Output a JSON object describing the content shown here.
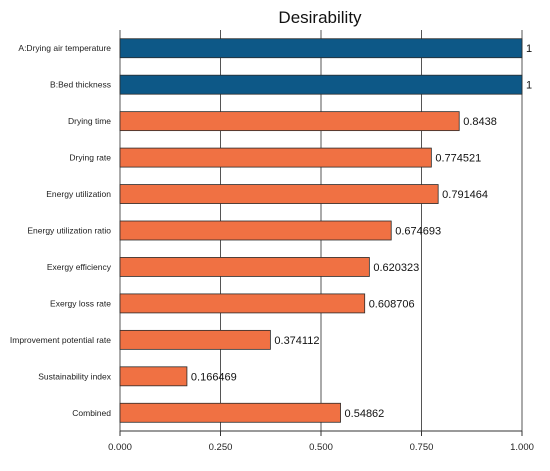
{
  "chart_data": {
    "type": "bar",
    "orientation": "horizontal",
    "title": "Desirability",
    "xlabel": "",
    "ylabel": "",
    "xlim": [
      0,
      1
    ],
    "ticks": [
      "0.000",
      "0.250",
      "0.500",
      "0.750",
      "1.000"
    ],
    "tick_values": [
      0,
      0.25,
      0.5,
      0.75,
      1
    ],
    "grid": "vertical",
    "categories": [
      "A:Drying air temperature",
      "B:Bed thickness",
      "Drying time",
      "Drying rate",
      "Energy utilization",
      "Energy utilization ratio",
      "Exergy efficiency",
      "Exergy loss rate",
      "Improvement potential rate",
      "Sustainability index",
      "Combined"
    ],
    "values": [
      1,
      1,
      0.8438,
      0.774521,
      0.791464,
      0.674693,
      0.620323,
      0.608706,
      0.374112,
      0.166469,
      0.54862
    ],
    "value_labels": [
      "1",
      "1",
      "0.8438",
      "0.774521",
      "0.791464",
      "0.674693",
      "0.620323",
      "0.608706",
      "0.374112",
      "0.166469",
      "0.54862"
    ],
    "bar_colors": [
      "#0d5887",
      "#0d5887",
      "#f07143",
      "#f07143",
      "#f07143",
      "#f07143",
      "#f07143",
      "#f07143",
      "#f07143",
      "#f07143",
      "#f07143"
    ]
  }
}
